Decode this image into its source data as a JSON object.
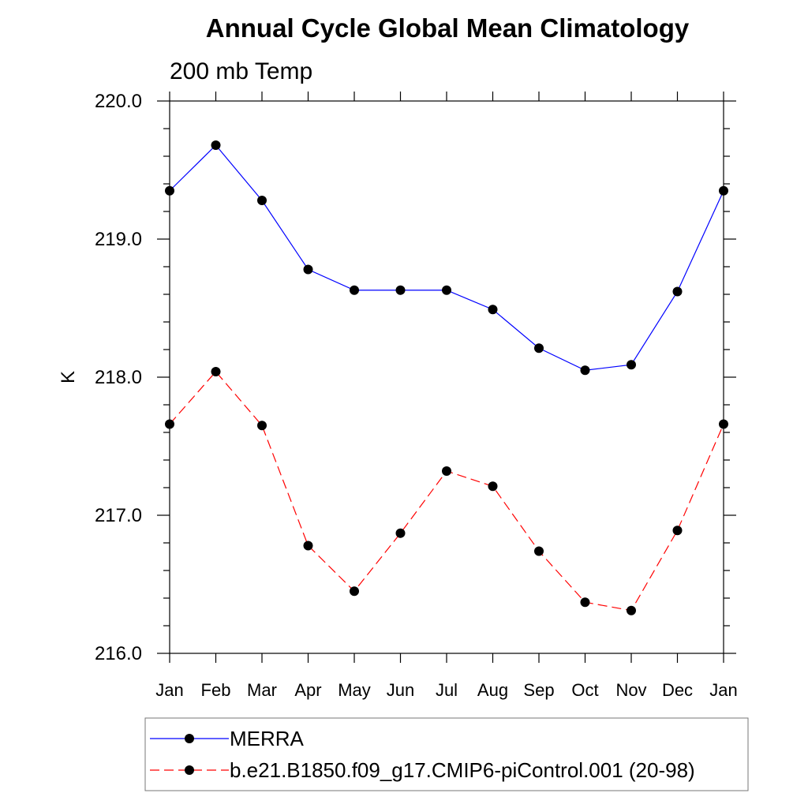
{
  "chart_data": {
    "type": "line",
    "title": "Annual Cycle Global Mean Climatology",
    "subtitle": "200 mb Temp",
    "xlabel": "",
    "ylabel": "K",
    "ylim": [
      216.0,
      220.0
    ],
    "yticks": [
      "216.0",
      "217.0",
      "218.0",
      "219.0",
      "220.0"
    ],
    "categories": [
      "Jan",
      "Feb",
      "Mar",
      "Apr",
      "May",
      "Jun",
      "Jul",
      "Aug",
      "Sep",
      "Oct",
      "Nov",
      "Dec",
      "Jan"
    ],
    "grid": false,
    "legend_position": "bottom",
    "series": [
      {
        "name": "MERRA",
        "color": "#0000ff",
        "style": "solid",
        "marker": "filled-circle",
        "values": [
          219.35,
          219.68,
          219.28,
          218.78,
          218.63,
          218.63,
          218.63,
          218.49,
          218.21,
          218.05,
          218.09,
          218.62,
          219.35
        ]
      },
      {
        "name": "b.e21.B1850.f09_g17.CMIP6-piControl.001 (20-98)",
        "color": "#ff0000",
        "style": "dashed",
        "marker": "filled-circle",
        "values": [
          217.66,
          218.04,
          217.65,
          216.78,
          216.45,
          216.87,
          217.32,
          217.21,
          216.74,
          216.37,
          216.31,
          216.89,
          217.66
        ]
      }
    ]
  }
}
